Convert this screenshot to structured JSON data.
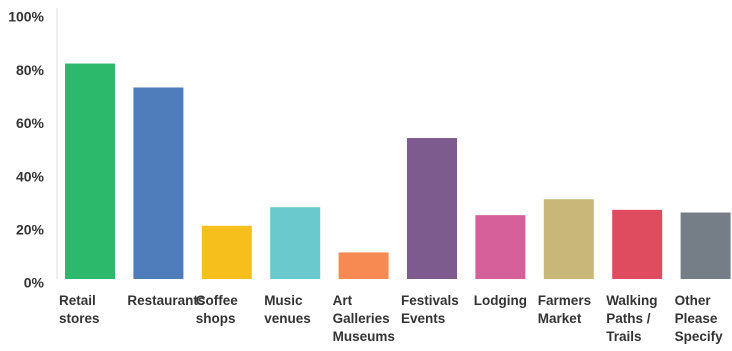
{
  "chart_data": {
    "type": "bar",
    "categories": [
      "Retail stores",
      "Restaurants",
      "Coffee shops",
      "Music venues",
      "Art Galleries Museums",
      "Festivals Events",
      "Lodging",
      "Farmers Market",
      "Walking Paths / Trails",
      "Other Please Specify"
    ],
    "values": [
      81,
      72,
      20,
      27,
      10,
      53,
      24,
      30,
      26,
      25
    ],
    "colors": [
      "#2db96b",
      "#4f7dbb",
      "#f6bf1c",
      "#6ac9cd",
      "#f78a52",
      "#7e5b8e",
      "#d6609a",
      "#c9b77a",
      "#df4b5f",
      "#757e86"
    ],
    "ylim": [
      0,
      100
    ],
    "yticks": [
      {
        "value": 0,
        "label": "0%"
      },
      {
        "value": 20,
        "label": "20%"
      },
      {
        "value": 40,
        "label": "40%"
      },
      {
        "value": 60,
        "label": "60%"
      },
      {
        "value": 80,
        "label": "80%"
      },
      {
        "value": 100,
        "label": "100%"
      }
    ],
    "grid": false
  }
}
